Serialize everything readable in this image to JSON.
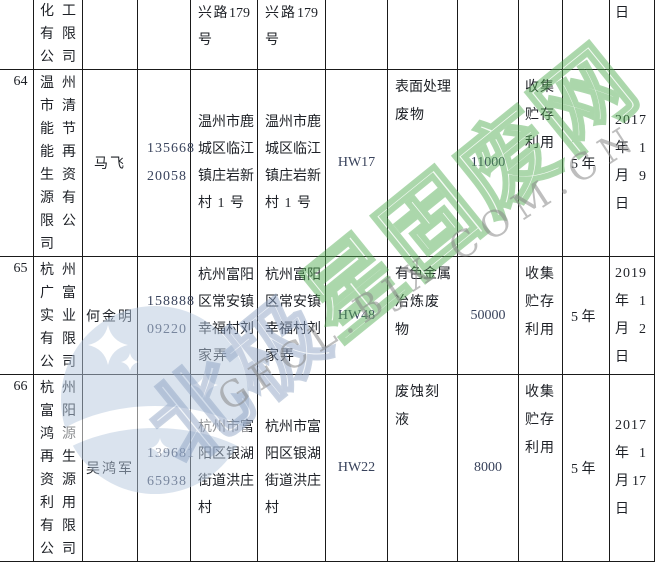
{
  "page": {
    "background": "#ffffff"
  },
  "watermark": {
    "cn_blue": "北极",
    "cn_green": "星固废网",
    "latin": "GFCL.BJX.COM.CN",
    "green": "#52aa52",
    "blue": "#8ba0c1",
    "latin_gray": "#8a8a8a",
    "logo_blue": "#b7c9df"
  },
  "table": {
    "rows": [
      {
        "partial": true,
        "index": "",
        "company": [
          [
            "化",
            "工"
          ],
          [
            "有",
            "限"
          ],
          [
            "公",
            "司"
          ]
        ],
        "contact": "",
        "phone": [],
        "address1": [
          [
            "兴",
            "路",
            "179"
          ],
          "号"
        ],
        "address2": [
          [
            "兴",
            "路",
            "179"
          ],
          "号"
        ],
        "hw_code": "",
        "waste_type": [],
        "quantity": "",
        "method": [],
        "duration": "",
        "date": [
          "日"
        ]
      },
      {
        "index": "64",
        "company": [
          [
            "温",
            "州"
          ],
          [
            "市",
            "清"
          ],
          [
            "能",
            "节"
          ],
          [
            "能",
            "再"
          ],
          [
            "生",
            "资"
          ],
          [
            "源",
            "有"
          ],
          [
            "限",
            "公"
          ],
          "司"
        ],
        "contact": "马飞",
        "phone": [
          "135668",
          "20058"
        ],
        "address1": [
          [
            "温",
            "州",
            "市",
            "鹿"
          ],
          [
            "城",
            "区",
            "临",
            "江"
          ],
          [
            "镇",
            "庄",
            "岩",
            "新"
          ],
          "村 1 号"
        ],
        "address2": [
          [
            "温",
            "州",
            "市",
            "鹿"
          ],
          [
            "城",
            "区",
            "临",
            "江"
          ],
          [
            "镇",
            "庄",
            "岩",
            "新"
          ],
          "村 1 号"
        ],
        "hw_code": "HW17",
        "waste_type": [
          [
            "表",
            "面",
            "处",
            "理"
          ],
          "废物"
        ],
        "quantity": "11000",
        "method": [
          "收集",
          "贮存",
          "利用"
        ],
        "duration": "5 年",
        "date": [
          "2017",
          [
            "年",
            "1"
          ],
          [
            "月",
            "9"
          ],
          "日"
        ]
      },
      {
        "index": "65",
        "company": [
          [
            "杭",
            "州"
          ],
          [
            "广",
            "富"
          ],
          [
            "实",
            "业"
          ],
          [
            "有",
            "限"
          ],
          [
            "公",
            "司"
          ]
        ],
        "contact": "何金明",
        "phone": [
          "158888",
          "09220"
        ],
        "address1": [
          [
            "杭",
            "州",
            "富",
            "阳"
          ],
          [
            "区",
            "常",
            "安",
            "镇"
          ],
          [
            "幸",
            "福",
            "村",
            "刘"
          ],
          "家弄"
        ],
        "address2": [
          [
            "杭",
            "州",
            "富",
            "阳"
          ],
          [
            "区",
            "常",
            "安",
            "镇"
          ],
          [
            "幸",
            "福",
            "村",
            "刘"
          ],
          "家弄"
        ],
        "hw_code": "HW48",
        "waste_type": [
          [
            "有",
            "色",
            "金",
            "属"
          ],
          "冶炼废物"
        ],
        "quantity": "50000",
        "method": [
          "收集",
          "贮存",
          "利用"
        ],
        "duration": "5 年",
        "date": [
          "2019",
          [
            "年",
            "1"
          ],
          [
            "月",
            "2"
          ],
          "日"
        ]
      },
      {
        "index": "66",
        "company": [
          [
            "杭",
            "州"
          ],
          [
            "富",
            "阳"
          ],
          [
            "鸿",
            "源"
          ],
          [
            "再",
            "生"
          ],
          [
            "资",
            "源"
          ],
          [
            "利",
            "用"
          ],
          [
            "有",
            "限"
          ],
          [
            "公",
            "司"
          ]
        ],
        "contact": "吴鸿军",
        "phone": [
          "139681",
          "65938"
        ],
        "address1": [
          [
            "杭",
            "州",
            "市",
            "富"
          ],
          [
            "阳",
            "区",
            "银",
            "湖"
          ],
          [
            "街",
            "道",
            "洪",
            "庄"
          ],
          "村"
        ],
        "address2": [
          [
            "杭",
            "州",
            "市",
            "富"
          ],
          [
            "阳",
            "区",
            "银",
            "湖"
          ],
          [
            "街",
            "道",
            "洪",
            "庄"
          ],
          "村"
        ],
        "hw_code": "HW22",
        "waste_type": [
          "废蚀刻液"
        ],
        "quantity": "8000",
        "method": [
          "收集",
          "贮存",
          "利用"
        ],
        "duration": "5 年",
        "date": [
          "2017",
          [
            "年",
            "1"
          ],
          [
            "月",
            "17"
          ],
          "日"
        ]
      }
    ]
  }
}
